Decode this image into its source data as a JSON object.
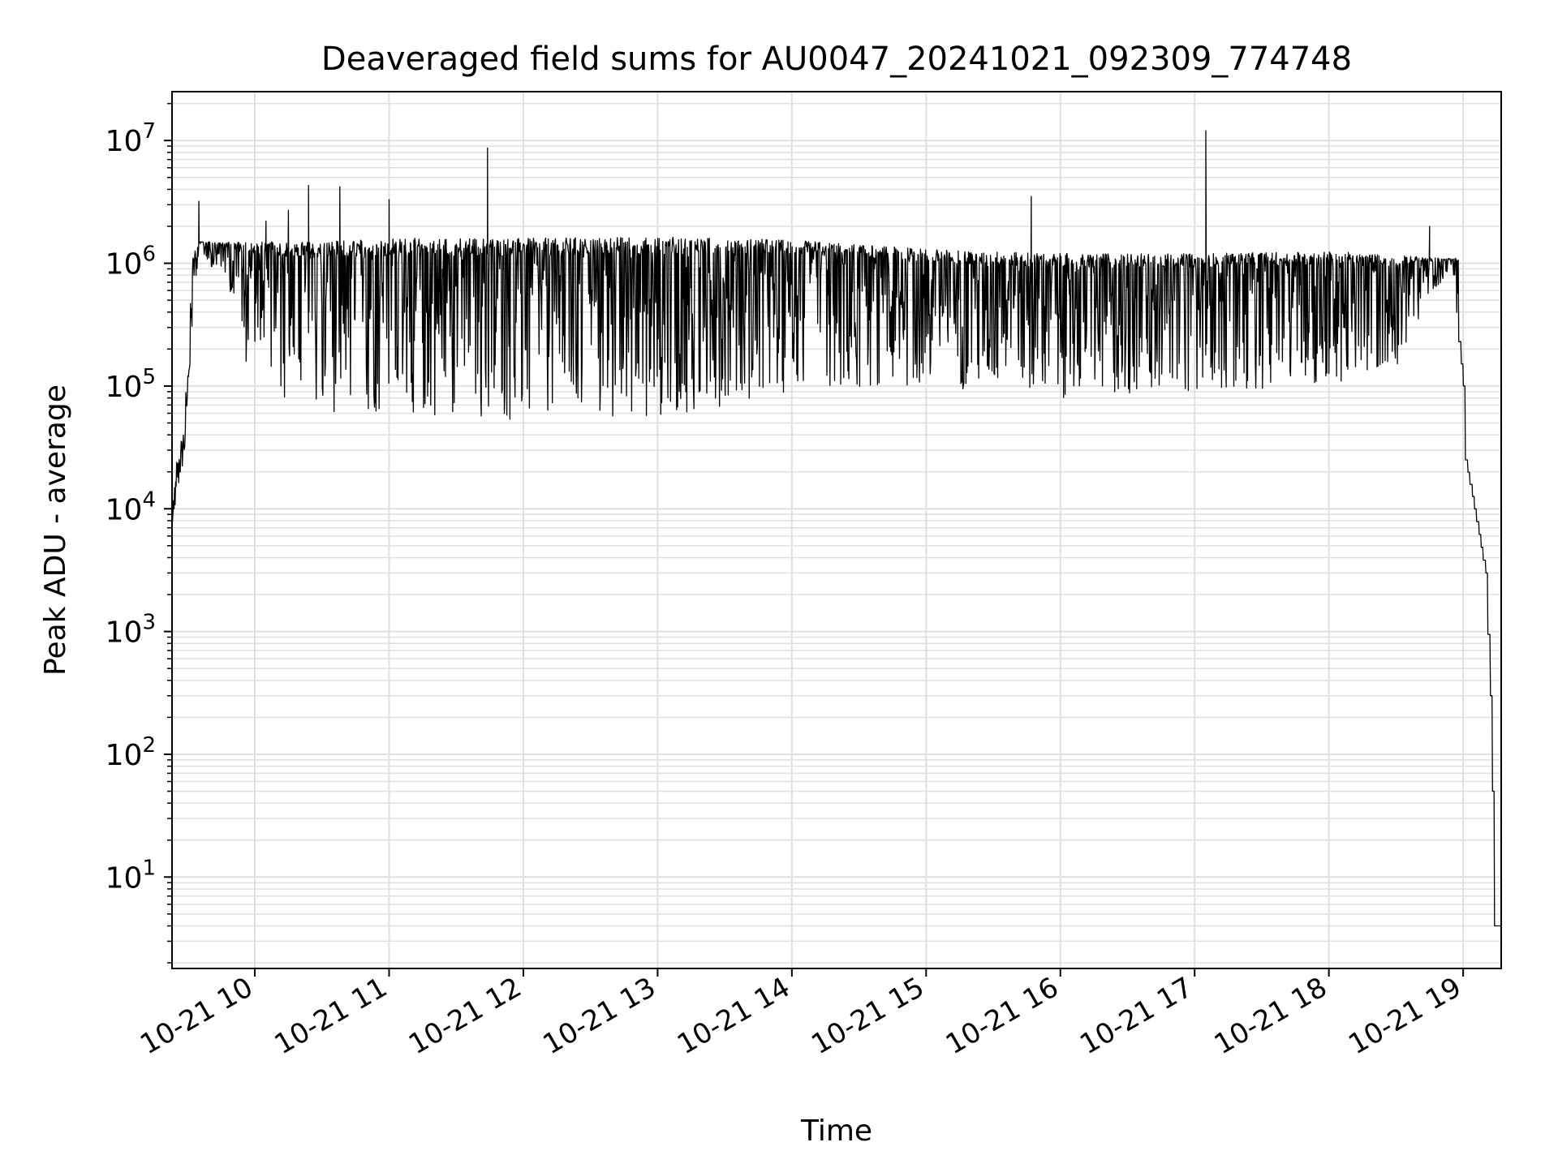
{
  "chart_data": {
    "type": "line",
    "title": "Deaveraged field sums for AU0047_20241021_092309_774748",
    "xlabel": "Time",
    "ylabel": "Peak ADU - average",
    "x_tick_labels": [
      "10-21 10",
      "10-21 11",
      "10-21 12",
      "10-21 13",
      "10-21 14",
      "10-21 15",
      "10-21 16",
      "10-21 17",
      "10-21 18",
      "10-21 19"
    ],
    "y_tick_labels": [
      {
        "base": "10",
        "exp": "1"
      },
      {
        "base": "10",
        "exp": "2"
      },
      {
        "base": "10",
        "exp": "3"
      },
      {
        "base": "10",
        "exp": "4"
      },
      {
        "base": "10",
        "exp": "5"
      },
      {
        "base": "10",
        "exp": "6"
      },
      {
        "base": "10",
        "exp": "7"
      }
    ],
    "xlim": [
      "2024-10-21 09:23",
      "2024-10-21 19:17"
    ],
    "ylim": [
      1.8,
      25000000
    ],
    "yscale": "log",
    "grid": true,
    "line_color": "#000000",
    "grid_color": "#e0e0e0",
    "series": [
      {
        "values": [
          [
            "2024-10-21 09:23",
            9000
          ],
          [
            "2024-10-21 09:25",
            20000
          ],
          [
            "2024-10-21 09:28",
            35000
          ],
          [
            "2024-10-21 09:30",
            150000
          ],
          [
            "2024-10-21 09:32",
            900000
          ],
          [
            "2024-10-21 09:35",
            1400000
          ],
          [
            "2024-10-21 09:40",
            900000
          ],
          [
            "2024-10-21 09:45",
            700000
          ],
          [
            "2024-10-21 09:50",
            400000
          ],
          [
            "2024-10-21 09:55",
            150000
          ],
          [
            "2024-10-21 10:00",
            150000
          ],
          [
            "2024-10-21 10:15",
            70000
          ],
          [
            "2024-10-21 10:30",
            60000
          ],
          [
            "2024-10-21 11:00",
            60000
          ],
          [
            "2024-10-21 11:30",
            55000
          ],
          [
            "2024-10-21 12:00",
            50000
          ],
          [
            "2024-10-21 12:30",
            50000
          ],
          [
            "2024-10-21 13:00",
            55000
          ],
          [
            "2024-10-21 13:30",
            70000
          ],
          [
            "2024-10-21 14:00",
            90000
          ],
          [
            "2024-10-21 15:00",
            100000
          ],
          [
            "2024-10-21 16:00",
            80000
          ],
          [
            "2024-10-21 17:00",
            90000
          ],
          [
            "2024-10-21 18:00",
            100000
          ],
          [
            "2024-10-21 18:30",
            150000
          ],
          [
            "2024-10-21 18:45",
            600000
          ],
          [
            "2024-10-21 18:55",
            800000
          ],
          [
            "2024-10-21 19:00",
            100000
          ],
          [
            "2024-10-21 19:01",
            25000
          ],
          [
            "2024-10-21 19:05",
            10000
          ],
          [
            "2024-10-21 19:10",
            3000
          ],
          [
            "2024-10-21 19:12",
            300
          ],
          [
            "2024-10-21 19:13",
            50
          ],
          [
            "2024-10-21 19:14",
            4
          ],
          [
            "2024-10-21 19:17",
            4
          ]
        ],
        "upper_envelope": [
          [
            "2024-10-21 09:35",
            1500000
          ],
          [
            "2024-10-21 10:30",
            1500000
          ],
          [
            "2024-10-21 11:00",
            1600000
          ],
          [
            "2024-10-21 12:00",
            1600000
          ],
          [
            "2024-10-21 13:00",
            1650000
          ],
          [
            "2024-10-21 14:00",
            1550000
          ],
          [
            "2024-10-21 15:00",
            1300000
          ],
          [
            "2024-10-21 16:00",
            1200000
          ],
          [
            "2024-10-21 17:00",
            1200000
          ],
          [
            "2024-10-21 18:00",
            1250000
          ],
          [
            "2024-10-21 18:50",
            1100000
          ]
        ],
        "spikes": [
          [
            "2024-10-21 09:35",
            3200000
          ],
          [
            "2024-10-21 10:05",
            2200000
          ],
          [
            "2024-10-21 10:15",
            2700000
          ],
          [
            "2024-10-21 10:24",
            4300000
          ],
          [
            "2024-10-21 10:38",
            4200000
          ],
          [
            "2024-10-21 11:00",
            3300000
          ],
          [
            "2024-10-21 11:44",
            8700000
          ],
          [
            "2024-10-21 15:47",
            3500000
          ],
          [
            "2024-10-21 17:05",
            12000000
          ],
          [
            "2024-10-21 18:45",
            2000000
          ]
        ]
      }
    ]
  }
}
